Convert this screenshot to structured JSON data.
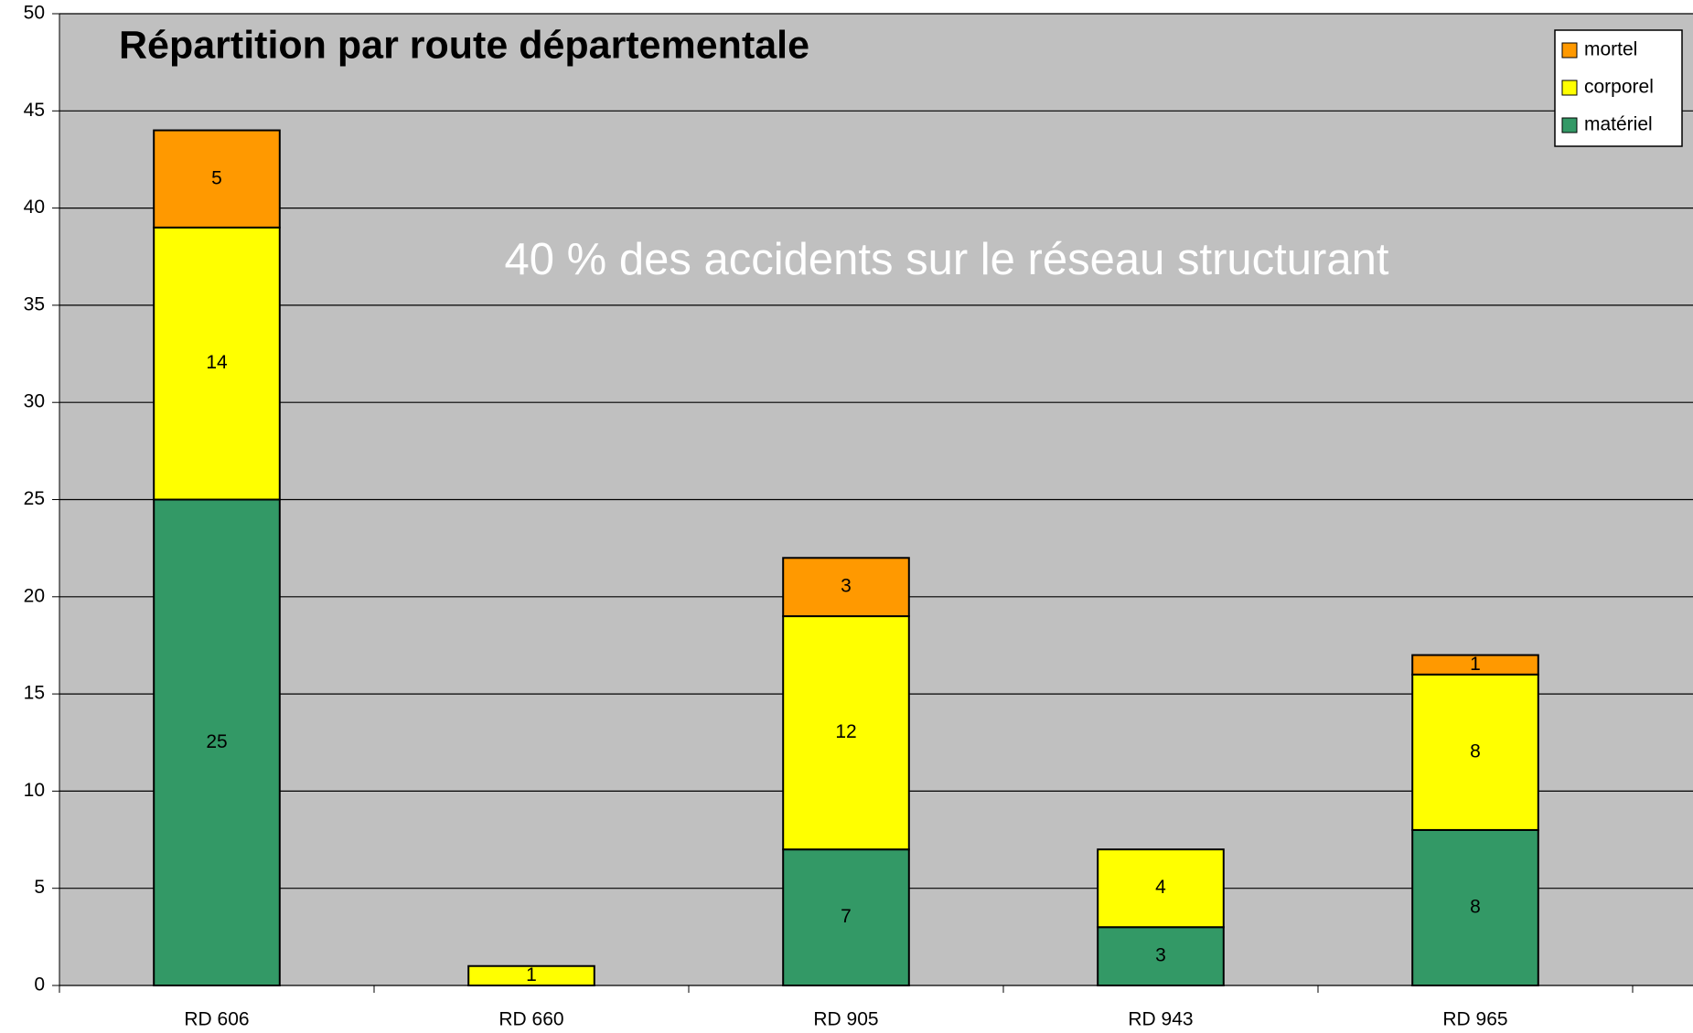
{
  "chart_data": {
    "type": "stacked_bar",
    "title": "Répartition par route départementale",
    "annotation": "40 % des accidents sur le réseau structurant",
    "categories": [
      "RD 606",
      "RD 660",
      "RD 905",
      "RD 943",
      "RD 965"
    ],
    "series": [
      {
        "name": "matériel",
        "color": "#339966",
        "values": [
          25,
          null,
          7,
          3,
          8
        ]
      },
      {
        "name": "corporel",
        "color": "#ffff00",
        "values": [
          14,
          1,
          12,
          4,
          8
        ]
      },
      {
        "name": "mortel",
        "color": "#ff9900",
        "values": [
          5,
          null,
          3,
          null,
          1
        ]
      }
    ],
    "ylim": [
      0,
      50
    ],
    "yticks": [
      0,
      5,
      10,
      15,
      20,
      25,
      30,
      35,
      40,
      45,
      50
    ],
    "grid": true,
    "legend": "top-right",
    "background": "#c0c0c0"
  }
}
